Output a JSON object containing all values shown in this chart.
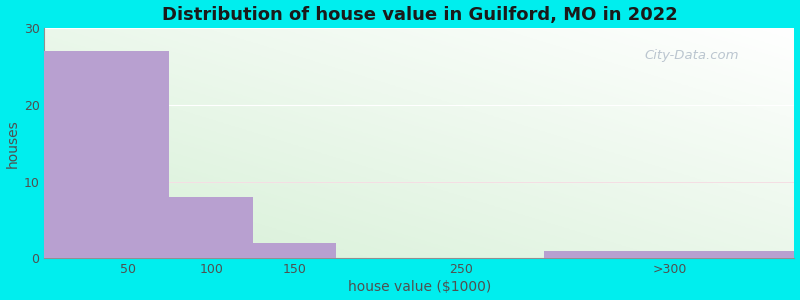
{
  "title": "Distribution of house value in Guilford, MO in 2022",
  "xlabel": "house value ($1000)",
  "ylabel": "houses",
  "bar_lefts": [
    0,
    75,
    125,
    200,
    300
  ],
  "bar_rights": [
    75,
    125,
    175,
    300,
    450
  ],
  "bar_values": [
    27,
    8,
    2,
    0,
    1
  ],
  "xtick_positions": [
    50,
    100,
    150,
    250,
    375
  ],
  "xtick_labels": [
    "50",
    "100",
    "150",
    "250",
    ">300"
  ],
  "bar_color": "#b8a0d0",
  "ylim": [
    0,
    30
  ],
  "xlim": [
    0,
    450
  ],
  "yticks": [
    0,
    10,
    20,
    30
  ],
  "background_outer": "#00eeee",
  "title_fontsize": 13,
  "axis_label_fontsize": 10,
  "tick_fontsize": 9,
  "title_fontweight": "bold",
  "watermark_text": "City-Data.com",
  "watermark_color": "#b0bcc8",
  "grid_color": "#e0e8d8",
  "grad_color_top": "#e8f5e0",
  "grad_color_right": "#f8fffa",
  "grad_color_bottom_left": "#d8eecc"
}
